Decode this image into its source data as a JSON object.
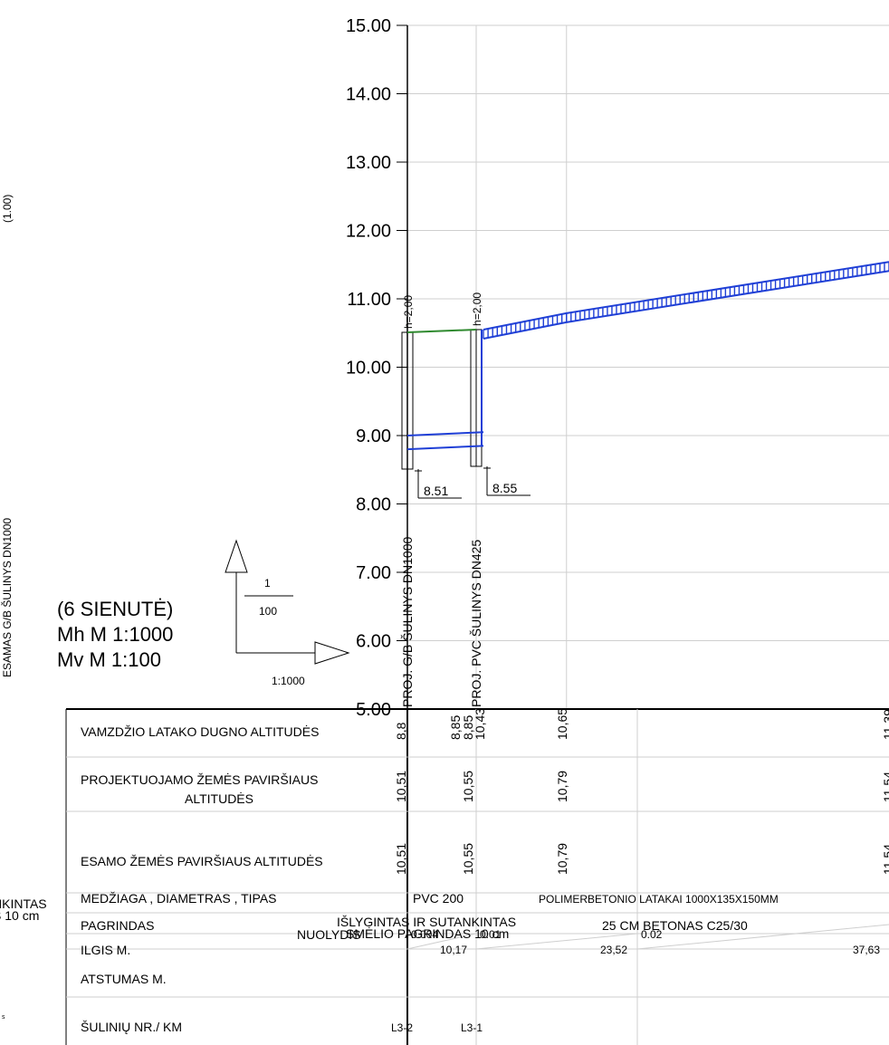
{
  "left_edge": {
    "vertical_text": "ESAMAS G/B ŠULINYS DN1000",
    "top_vertical_text": "(1.00)",
    "clip_line_1": "NKINTAS",
    "clip_line_2": "S 10 cm",
    "clip_small": "s"
  },
  "scale_box": {
    "section_label": "(6 SIENUTĖ)",
    "mh": "Mh M 1:1000",
    "mv": "Mv M 1:100",
    "fraction_num": "1",
    "fraction_den": "100",
    "horizontal_ratio": "1:1000"
  },
  "chart_data": {
    "type": "line",
    "y_ticks": [
      "15.00",
      "14.00",
      "13.00",
      "12.00",
      "11.00",
      "10.00",
      "9.00",
      "8.00",
      "7.00",
      "6.00",
      "5.00"
    ],
    "y_axis_ticks": [
      15,
      14,
      13,
      12,
      11,
      10,
      9,
      8,
      7,
      6,
      5
    ],
    "ylim": [
      5,
      15
    ],
    "xlim": [
      0,
      37.63
    ],
    "grid": true,
    "manholes": [
      {
        "x": 0,
        "label": "PROJ. G/B ŠULINYS DN1000",
        "depth_label": "h=2,00",
        "top": 10.51,
        "bottom": 8.51,
        "bottom_label": "8.51",
        "lines": [
          9.0,
          8.8
        ]
      },
      {
        "x": 10.17,
        "label": "PROJ. PVC ŠULINYS DN425",
        "depth_label": "h=2,00",
        "top": 10.55,
        "bottom": 8.55,
        "bottom_label": "8.55",
        "lines": [
          9.05,
          8.85
        ]
      }
    ],
    "series": [
      {
        "points": [
          [
            0,
            10.51
          ],
          [
            10.17,
            10.55
          ]
        ]
      },
      {
        "points": [
          [
            10.17,
            10.55
          ],
          [
            23.52,
            10.79
          ],
          [
            37.63,
            11.54
          ]
        ]
      },
      {
        "points": [
          [
            0,
            9.0
          ],
          [
            10.17,
            9.05
          ]
        ]
      },
      {
        "points": [
          [
            0,
            8.8
          ],
          [
            10.17,
            8.85
          ]
        ]
      }
    ]
  },
  "table": {
    "rows": [
      {
        "label": "VAMZDŽIO LATAKO DUGNO ALTITUDĖS"
      },
      {
        "label": "PROJEKTUOJAMO ŽEMĖS PAVIRŠIAUS",
        "label2": "ALTITUDĖS"
      },
      {
        "label": "ESAMO ŽEMĖS PAVIRŠIAUS   ALTITUDĖS"
      },
      {
        "label": "MEDŽIAGA , DIAMETRAS , TIPAS"
      },
      {
        "label": "PAGRINDAS"
      },
      {
        "label": "ILGIS M.",
        "extra": "NUOLYDIS"
      },
      {
        "label": "ATSTUMAS M."
      },
      {
        "label": "ŠULINIŲ NR./ KM"
      }
    ],
    "invert_values": [
      {
        "x": 0,
        "text": "8,8"
      },
      {
        "x": 10.17,
        "text": "8,85"
      },
      {
        "x": 10.17,
        "text": "8,85"
      },
      {
        "x": 10.17,
        "text": "10,43"
      },
      {
        "x": 23.52,
        "text": "10,65"
      },
      {
        "x": 37.63,
        "text": "11,39"
      }
    ],
    "design_ground": [
      {
        "x": 0,
        "text": "10,51"
      },
      {
        "x": 10.17,
        "text": "10,55"
      },
      {
        "x": 23.52,
        "text": "10,79"
      },
      {
        "x": 37.63,
        "text": "11,54"
      }
    ],
    "existing_ground": [
      {
        "x": 0,
        "text": "10,51"
      },
      {
        "x": 10.17,
        "text": "10,55"
      },
      {
        "x": 23.52,
        "text": "10,79"
      },
      {
        "x": 37.63,
        "text": "11,54"
      }
    ],
    "material": [
      "PVC 200",
      "POLIMERBETONIO LATAKAI 1000X135X150MM"
    ],
    "foundation": [
      "IŠLYGINTAS IR SUTANKINTAS",
      "SMĖLIO PAGRINDAS 10 cm",
      "25 CM BETONAS C25/30"
    ],
    "slopes": [
      "0.004",
      "0.01",
      "0.02"
    ],
    "lengths": [
      "10,17",
      "23,52",
      "37,63"
    ],
    "wells": [
      "L3-2",
      "L3-1"
    ]
  }
}
